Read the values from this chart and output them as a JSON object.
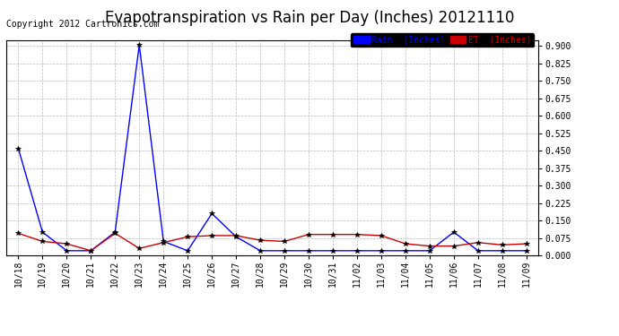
{
  "title": "Evapotranspiration vs Rain per Day (Inches) 20121110",
  "copyright": "Copyright 2012 Cartronics.com",
  "x_labels": [
    "10/18",
    "10/19",
    "10/20",
    "10/21",
    "10/22",
    "10/23",
    "10/24",
    "10/25",
    "10/26",
    "10/27",
    "10/28",
    "10/29",
    "10/30",
    "10/31",
    "11/02",
    "11/03",
    "11/04",
    "11/05",
    "11/06",
    "11/07",
    "11/08",
    "11/09"
  ],
  "rain_values": [
    0.46,
    0.1,
    0.02,
    0.02,
    0.1,
    0.905,
    0.06,
    0.02,
    0.18,
    0.08,
    0.02,
    0.02,
    0.02,
    0.02,
    0.02,
    0.02,
    0.02,
    0.02,
    0.1,
    0.02,
    0.02,
    0.02
  ],
  "et_values": [
    0.095,
    0.06,
    0.05,
    0.02,
    0.095,
    0.03,
    0.055,
    0.08,
    0.085,
    0.085,
    0.065,
    0.06,
    0.09,
    0.09,
    0.09,
    0.085,
    0.05,
    0.04,
    0.04,
    0.055,
    0.045,
    0.05
  ],
  "rain_color": "#0000ff",
  "et_color": "#cc0000",
  "bg_color": "#ffffff",
  "grid_color": "#bbbbbb",
  "ylim": [
    0,
    0.925
  ],
  "yticks": [
    0.0,
    0.075,
    0.15,
    0.225,
    0.3,
    0.375,
    0.45,
    0.525,
    0.6,
    0.675,
    0.75,
    0.825,
    0.9
  ],
  "title_fontsize": 12,
  "copyright_fontsize": 7,
  "legend_rain_label": "Rain  (Inches)",
  "legend_et_label": "ET  (Inches)"
}
